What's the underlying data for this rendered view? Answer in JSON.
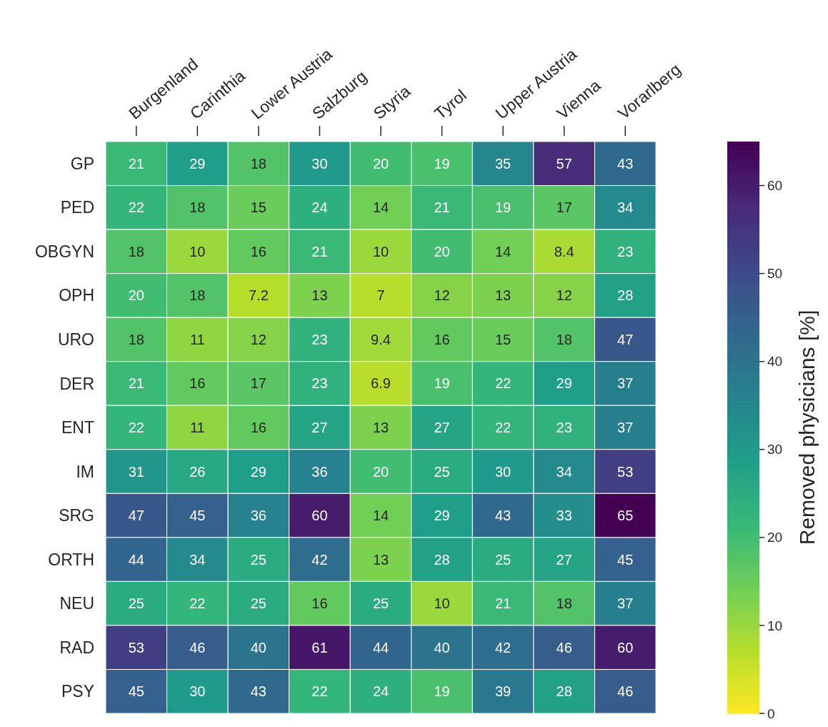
{
  "chart_data": {
    "type": "heatmap",
    "clabel": "Removed physicians [%]",
    "categories": [
      "Burgenland",
      "Carinthia",
      "Lower Austria",
      "Salzburg",
      "Styria",
      "Tyrol",
      "Upper Austria",
      "Vienna",
      "Vorarlberg"
    ],
    "y_categories": [
      "GP",
      "PED",
      "OBGYN",
      "OPH",
      "URO",
      "DER",
      "ENT",
      "IM",
      "SRG",
      "ORTH",
      "NEU",
      "RAD",
      "PSY"
    ],
    "cells": [
      [
        21,
        29,
        18,
        30,
        20,
        19,
        35,
        57,
        43
      ],
      [
        22,
        18,
        15,
        24,
        14,
        21,
        19,
        17,
        34
      ],
      [
        18,
        10,
        16,
        21,
        10,
        20,
        14,
        8.4,
        23
      ],
      [
        20,
        18,
        7.2,
        13,
        7,
        12,
        13,
        12,
        28
      ],
      [
        18,
        11,
        12,
        23,
        9.4,
        16,
        15,
        18,
        47
      ],
      [
        21,
        16,
        17,
        23,
        6.9,
        19,
        22,
        29,
        37
      ],
      [
        22,
        11,
        16,
        27,
        13,
        27,
        22,
        23,
        37
      ],
      [
        31,
        26,
        29,
        36,
        20,
        25,
        30,
        34,
        53
      ],
      [
        47,
        45,
        36,
        60,
        14,
        29,
        43,
        33,
        65
      ],
      [
        44,
        34,
        25,
        42,
        13,
        28,
        25,
        27,
        45
      ],
      [
        25,
        22,
        25,
        16,
        25,
        10,
        21,
        18,
        37
      ],
      [
        53,
        46,
        40,
        61,
        44,
        40,
        42,
        46,
        60
      ],
      [
        45,
        30,
        43,
        22,
        24,
        19,
        39,
        28,
        46
      ]
    ],
    "clim": [
      0,
      65
    ],
    "cticks": [
      0,
      10,
      20,
      30,
      40,
      50,
      60
    ],
    "data_labels": true
  }
}
